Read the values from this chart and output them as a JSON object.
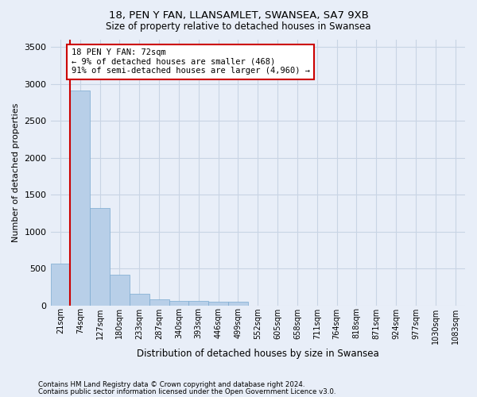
{
  "title1": "18, PEN Y FAN, LLANSAMLET, SWANSEA, SA7 9XB",
  "title2": "Size of property relative to detached houses in Swansea",
  "xlabel": "Distribution of detached houses by size in Swansea",
  "ylabel": "Number of detached properties",
  "categories": [
    "21sqm",
    "74sqm",
    "127sqm",
    "180sqm",
    "233sqm",
    "287sqm",
    "340sqm",
    "393sqm",
    "446sqm",
    "499sqm",
    "552sqm",
    "605sqm",
    "658sqm",
    "711sqm",
    "764sqm",
    "818sqm",
    "871sqm",
    "924sqm",
    "977sqm",
    "1030sqm",
    "1083sqm"
  ],
  "values": [
    570,
    2910,
    1315,
    415,
    155,
    80,
    60,
    55,
    45,
    45,
    0,
    0,
    0,
    0,
    0,
    0,
    0,
    0,
    0,
    0,
    0
  ],
  "bar_color": "#b8cfe8",
  "bar_edge_color": "#7aaad0",
  "grid_color": "#c8d4e4",
  "bg_color": "#e8eef8",
  "annotation_title": "18 PEN Y FAN: 72sqm",
  "annotation_line1": "← 9% of detached houses are smaller (468)",
  "annotation_line2": "91% of semi-detached houses are larger (4,960) →",
  "annotation_box_color": "#ffffff",
  "annotation_box_edge": "#cc0000",
  "vline_color": "#cc0000",
  "footnote1": "Contains HM Land Registry data © Crown copyright and database right 2024.",
  "footnote2": "Contains public sector information licensed under the Open Government Licence v3.0.",
  "ylim": [
    0,
    3600
  ],
  "yticks": [
    0,
    500,
    1000,
    1500,
    2000,
    2500,
    3000,
    3500
  ]
}
